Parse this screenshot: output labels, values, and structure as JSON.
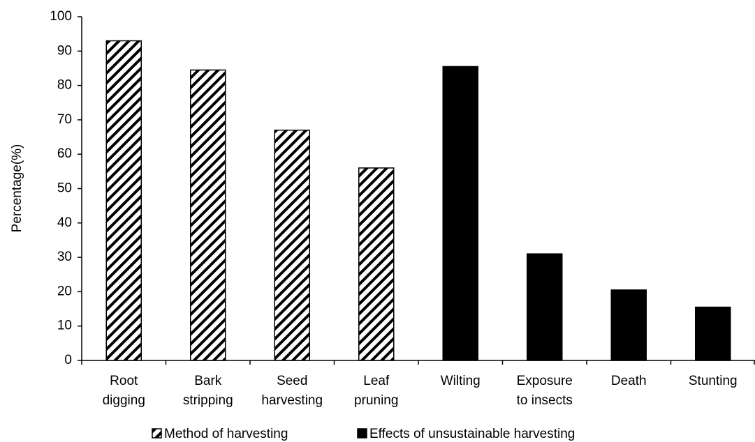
{
  "chart_data": {
    "type": "bar",
    "ylabel": "Percentage(%)",
    "categories": [
      [
        "Root",
        "digging"
      ],
      [
        "Bark",
        "stripping"
      ],
      [
        "Seed",
        "harvesting"
      ],
      [
        "Leaf",
        "pruning"
      ],
      [
        "Wilting"
      ],
      [
        "Exposure",
        "to insects"
      ],
      [
        "Death"
      ],
      [
        "Stunting"
      ]
    ],
    "series": [
      {
        "name": "Method of harvesting",
        "color": "#000000",
        "fill": "hatch",
        "values": [
          93,
          84.5,
          67,
          56,
          null,
          null,
          null,
          null
        ]
      },
      {
        "name": "Effects of unsustainable harvesting",
        "color": "#000000",
        "fill": "solid",
        "values": [
          null,
          null,
          null,
          null,
          85.5,
          31,
          20.5,
          15.5
        ]
      }
    ],
    "ylim": [
      0,
      100
    ],
    "yticks": [
      0,
      10,
      20,
      30,
      40,
      50,
      60,
      70,
      80,
      90,
      100
    ],
    "grid": false,
    "legend": "bottom"
  }
}
